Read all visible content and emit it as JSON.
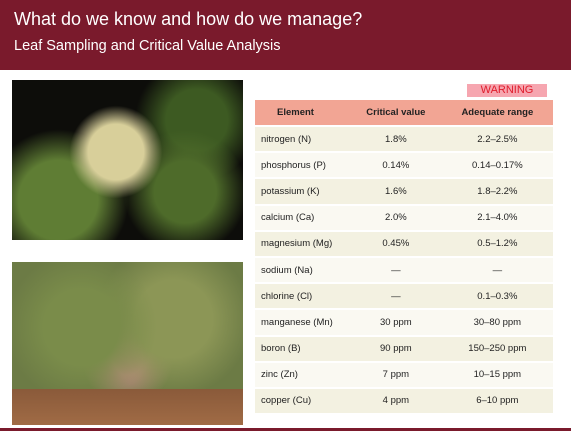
{
  "header": {
    "title": "What do we know and how do we manage?",
    "subtitle": "Leaf Sampling and Critical Value Analysis"
  },
  "warning": "WARNING",
  "table": {
    "columns": [
      "Element",
      "Critical value",
      "Adequate range"
    ],
    "rows": [
      [
        "nitrogen (N)",
        "1.8%",
        "2.2–2.5%"
      ],
      [
        "phosphorus (P)",
        "0.14%",
        "0.14–0.17%"
      ],
      [
        "potassium (K)",
        "1.6%",
        "1.8–2.2%"
      ],
      [
        "calcium (Ca)",
        "2.0%",
        "2.1–4.0%"
      ],
      [
        "magnesium (Mg)",
        "0.45%",
        "0.5–1.2%"
      ],
      [
        "sodium (Na)",
        "—",
        "—"
      ],
      [
        "chlorine (Cl)",
        "—",
        "0.1–0.3%"
      ],
      [
        "manganese (Mn)",
        "30 ppm",
        "30–80 ppm"
      ],
      [
        "boron (B)",
        "90 ppm",
        "150–250 ppm"
      ],
      [
        "zinc (Zn)",
        "7 ppm",
        "10–15 ppm"
      ],
      [
        "copper (Cu)",
        "4 ppm",
        "6–10 ppm"
      ]
    ]
  }
}
